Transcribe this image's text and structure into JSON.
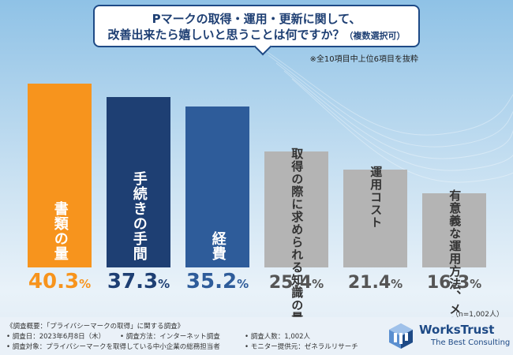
{
  "header": {
    "question_line1": "Pマークの取得・運用・更新に関して、",
    "question_line2": "改善出来たら嬉しいと思うことは何ですか？",
    "question_suffix": "（複数選択可）",
    "note": "※全10項目中上位6項目を抜粋"
  },
  "chart_data": {
    "type": "bar",
    "categories": [
      "書類の量",
      "手続きの手間",
      "経費",
      "取得の際に求められる知識の量",
      "運用コスト",
      "有意義な運用方法、メリット"
    ],
    "category_labels": [
      "書類の量",
      "手続きの手間",
      "経費",
      "取得の際に求められる\n知識の量",
      "運用コスト",
      "有意義な運用方法、\nメリット"
    ],
    "values": [
      40.3,
      37.3,
      35.2,
      25.4,
      21.4,
      16.3
    ],
    "value_labels": [
      {
        "num": "40.3",
        "unit": "%"
      },
      {
        "num": "37.3",
        "unit": "%"
      },
      {
        "num": "35.2",
        "unit": "%"
      },
      {
        "num": "25.4",
        "unit": "%"
      },
      {
        "num": "21.4",
        "unit": "%"
      },
      {
        "num": "16.3",
        "unit": "%"
      }
    ],
    "bar_colors": [
      "#f7941d",
      "#1e3f73",
      "#2e5c9a",
      "#b4b4b4",
      "#b4b4b4",
      "#b4b4b4"
    ],
    "label_colors": [
      "#ffffff",
      "#ffffff",
      "#ffffff",
      "#333333",
      "#333333",
      "#333333"
    ],
    "pct_colors": [
      "#f7941d",
      "#1e3f73",
      "#2e5c9a",
      "#555555",
      "#555555",
      "#555555"
    ],
    "ylim": [
      0,
      40.3
    ],
    "sample_size": "（n=1,002人）"
  },
  "footer": {
    "lines": [
      "《調査概要：「プライバシーマークの取得」に関する調査》",
      "• 調査日：2023年6月8日（木）",
      "• 調査方法：インターネット調査",
      "• 調査人数：1,002人",
      "• 調査対象：プライバシーマークを取得している中小企業の総務担当者",
      "• モニター提供元：ゼネラルリサーチ"
    ],
    "brand": "WorksTrust",
    "tagline": "The Best Consulting",
    "colors": {
      "brand": "#1e4a86",
      "logo_light": "#5b8fd0"
    }
  }
}
